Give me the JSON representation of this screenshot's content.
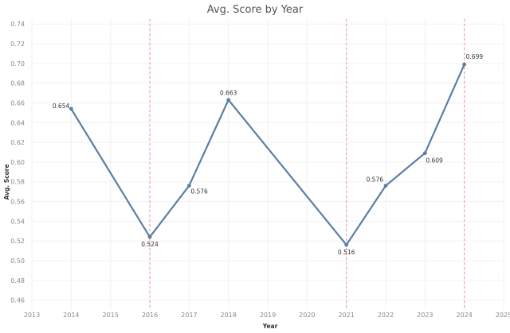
{
  "chart_data": {
    "type": "line",
    "title": "Avg. Score by Year",
    "xlabel": "Year",
    "ylabel": "Avg. Score",
    "x_ticks": [
      "2013",
      "2014",
      "2015",
      "2016",
      "2017",
      "2018",
      "2019",
      "2020",
      "2021",
      "2022",
      "2023",
      "2024",
      "2025"
    ],
    "y_ticks": [
      "0.46",
      "0.48",
      "0.50",
      "0.52",
      "0.54",
      "0.56",
      "0.58",
      "0.60",
      "0.62",
      "0.64",
      "0.66",
      "0.68",
      "0.70",
      "0.72",
      "0.74"
    ],
    "xlim": [
      2013,
      2025
    ],
    "ylim": [
      0.45,
      0.745
    ],
    "points": [
      {
        "x": 2014,
        "y": 0.654,
        "label": "0.654"
      },
      {
        "x": 2016,
        "y": 0.524,
        "label": "0.524"
      },
      {
        "x": 2017,
        "y": 0.576,
        "label": "0.576"
      },
      {
        "x": 2018,
        "y": 0.663,
        "label": "0.663"
      },
      {
        "x": 2021,
        "y": 0.516,
        "label": "0.516"
      },
      {
        "x": 2022,
        "y": 0.576,
        "label": "0.576"
      },
      {
        "x": 2023,
        "y": 0.609,
        "label": "0.609"
      },
      {
        "x": 2024,
        "y": 0.699,
        "label": "0.699"
      }
    ],
    "reference_lines_x": [
      2016,
      2021,
      2024
    ],
    "grid": true,
    "legend": "none",
    "colors": {
      "series": "#5b7fa3",
      "reference": "#f2a0b0",
      "grid": "#f1f1f1"
    }
  }
}
